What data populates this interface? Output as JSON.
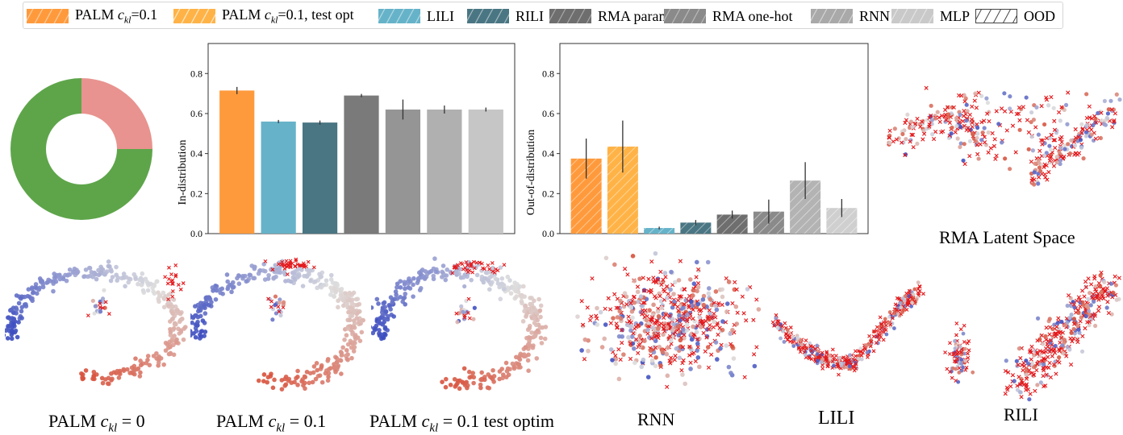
{
  "legend": {
    "items": [
      {
        "label": "PALM c_kl=0.1",
        "label_prefix": "PALM ",
        "label_var": "c",
        "label_sub": "kl",
        "label_suffix": "=0.1",
        "color": "#ff9a3c",
        "hatch": "solid"
      },
      {
        "label": "PALM c_kl=0.1, test opt",
        "label_prefix": "PALM ",
        "label_var": "c",
        "label_sub": "kl",
        "label_suffix": "=0.1, test opt",
        "color": "#ffb347",
        "hatch": "slash"
      },
      {
        "label": "LILI",
        "color": "#66b3c9",
        "hatch": "solid"
      },
      {
        "label": "RILI",
        "color": "#4a7683",
        "hatch": "solid"
      },
      {
        "label": "RMA param",
        "color": "#6e6e6e",
        "hatch": "solid"
      },
      {
        "label": "RMA one-hot",
        "color": "#8a8a8a",
        "hatch": "solid"
      },
      {
        "label": "RNN",
        "color": "#a9a9a9",
        "hatch": "solid"
      },
      {
        "label": "MLP",
        "color": "#c9c9c9",
        "hatch": "solid"
      },
      {
        "label": "OOD",
        "color": "#ffffff",
        "hatch": "slash"
      }
    ]
  },
  "chart_data": [
    {
      "type": "pie",
      "title": "",
      "labels": [
        "red",
        "green"
      ],
      "values": [
        25,
        75
      ],
      "colors": [
        "#e8938f",
        "#5ea54a"
      ],
      "donut": true
    },
    {
      "type": "bar",
      "title": "",
      "xlabel": "",
      "ylabel": "In-distribution",
      "ylim": [
        0,
        0.95
      ],
      "yticks": [
        0.0,
        0.2,
        0.4,
        0.6,
        0.8
      ],
      "ytick_labels": [
        "0.0",
        "0.2",
        "0.4",
        "0.6",
        "0.8"
      ],
      "categories": [
        "PALM c_kl=0.1",
        "LILI",
        "RILI",
        "RMA param",
        "RMA one-hot",
        "RNN",
        "MLP"
      ],
      "values": [
        0.715,
        0.56,
        0.555,
        0.69,
        0.62,
        0.62,
        0.62
      ],
      "errors": [
        0.018,
        0.008,
        0.01,
        0.008,
        0.05,
        0.02,
        0.01
      ],
      "colors": [
        "#ff9a3c",
        "#66b3c9",
        "#4a7683",
        "#7a7a7a",
        "#959595",
        "#b0b0b0",
        "#c6c6c6"
      ],
      "hatched": [
        false,
        false,
        false,
        false,
        false,
        false,
        false
      ]
    },
    {
      "type": "bar",
      "title": "",
      "xlabel": "",
      "ylabel": "Out-of-distribution",
      "ylim": [
        0,
        0.95
      ],
      "yticks": [
        0.0,
        0.2,
        0.4,
        0.6,
        0.8
      ],
      "ytick_labels": [
        "0.0",
        "0.2",
        "0.4",
        "0.6",
        "0.8"
      ],
      "categories": [
        "PALM c_kl=0.1",
        "PALM c_kl=0.1, test opt",
        "LILI",
        "RILI",
        "RMA param",
        "RMA one-hot",
        "RNN",
        "MLP"
      ],
      "values": [
        0.375,
        0.435,
        0.028,
        0.055,
        0.095,
        0.11,
        0.265,
        0.128
      ],
      "errors": [
        0.1,
        0.13,
        0.007,
        0.013,
        0.02,
        0.06,
        0.092,
        0.045
      ],
      "colors": [
        "#ff9a3c",
        "#ffb347",
        "#66b3c9",
        "#4a7683",
        "#6e6e6e",
        "#8a8a8a",
        "#b3b3b3",
        "#cfcfcf"
      ],
      "hatched": [
        true,
        true,
        true,
        true,
        true,
        true,
        true,
        true
      ]
    }
  ],
  "scatter_panels": [
    {
      "caption": "RMA Latent Space"
    },
    {
      "caption": "PALM c_kl = 0",
      "cap_prefix": "PALM ",
      "cap_var": "c",
      "cap_sub": "kl",
      "cap_suffix": " = 0"
    },
    {
      "caption": "PALM c_kl = 0.1",
      "cap_prefix": "PALM ",
      "cap_var": "c",
      "cap_sub": "kl",
      "cap_suffix": " = 0.1"
    },
    {
      "caption": "PALM c_kl = 0.1 test optim",
      "cap_prefix": "PALM ",
      "cap_var": "c",
      "cap_sub": "kl",
      "cap_suffix": " = 0.1 test optim"
    },
    {
      "caption": "RNN"
    },
    {
      "caption": "LILI"
    },
    {
      "caption": "RILI"
    }
  ],
  "colors": {
    "ood_marker": "#e3191c",
    "cool_end": "#3b4cc0",
    "mid": "#dddddd",
    "warm_end": "#d8503a"
  }
}
